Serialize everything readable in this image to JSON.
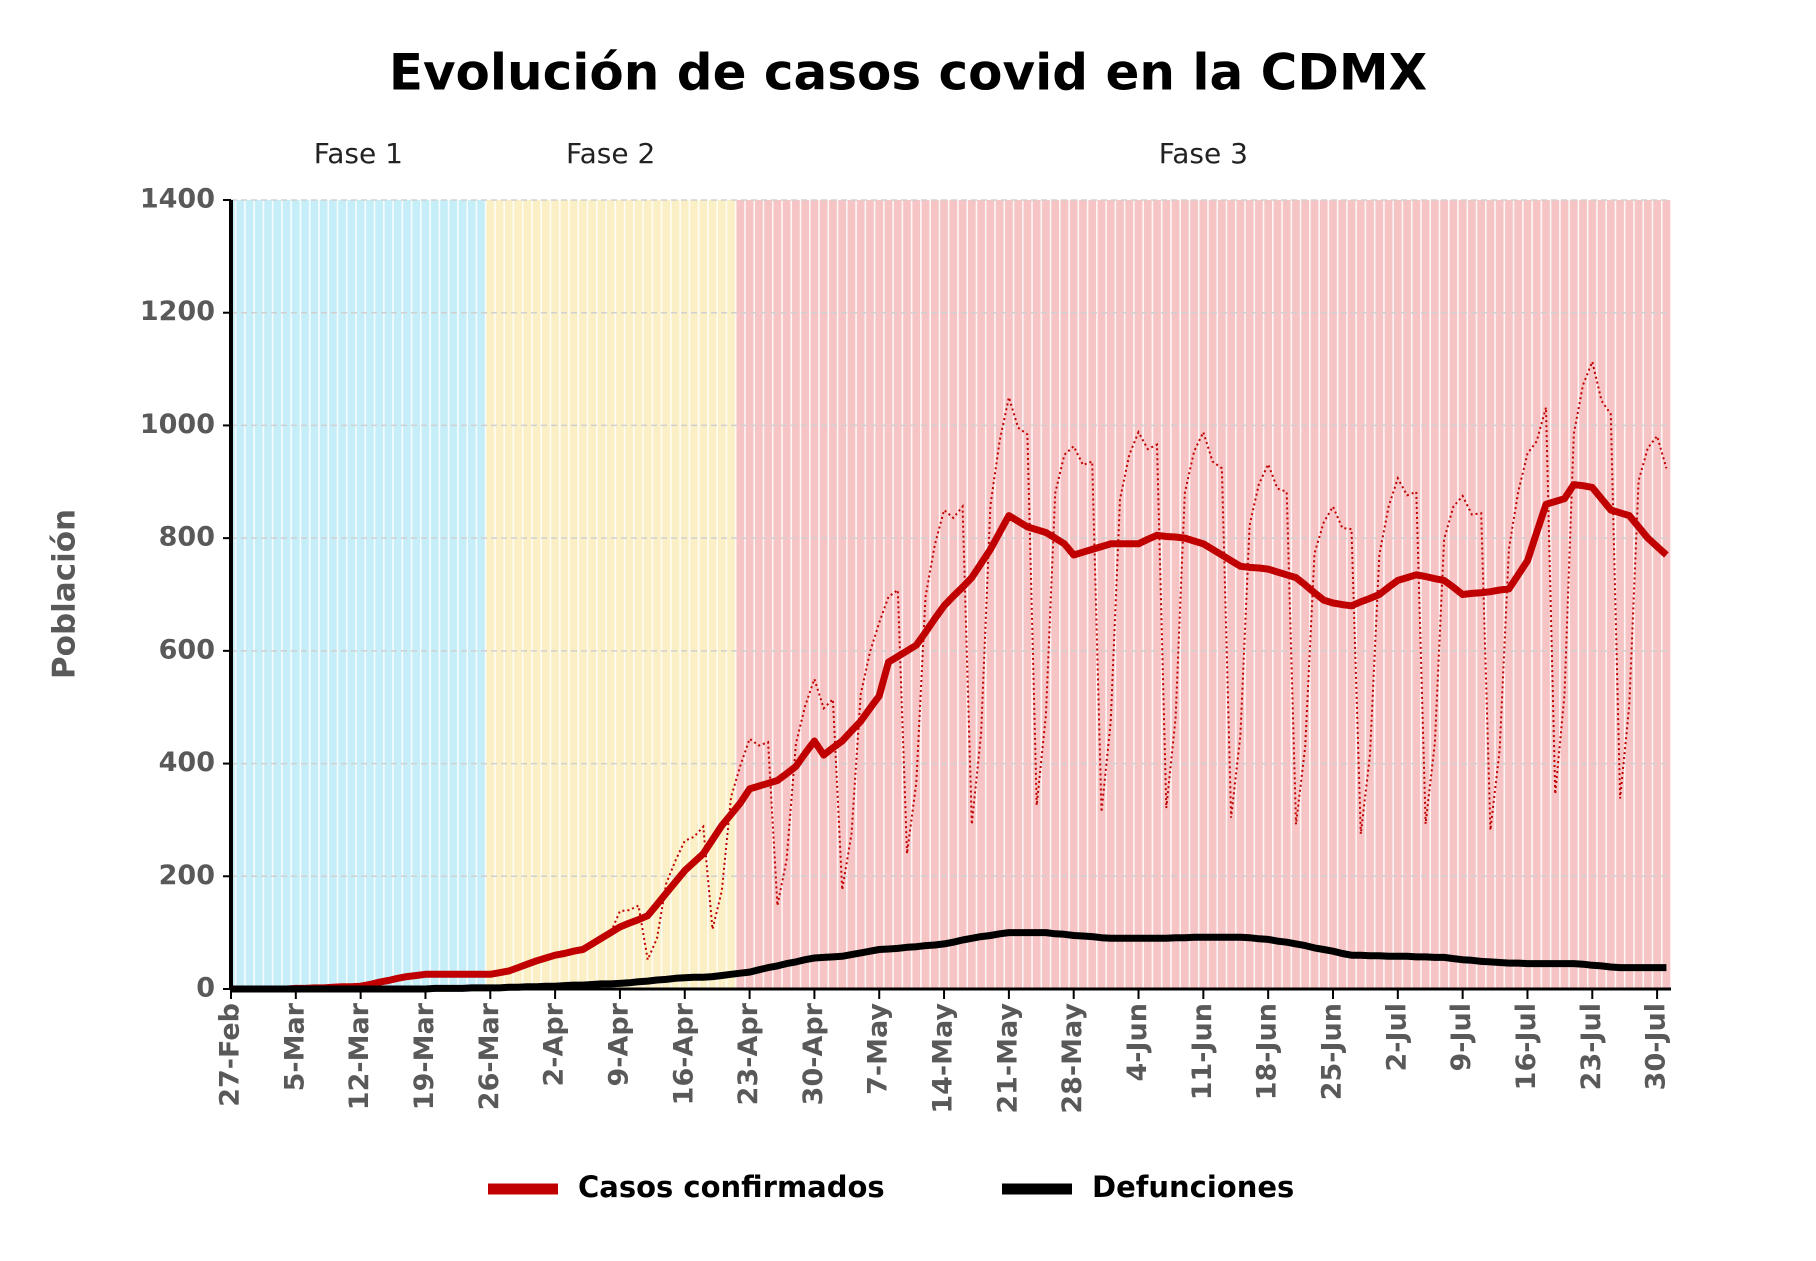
{
  "chart_data": {
    "type": "line",
    "title": "Evolución de casos covid en la CDMX",
    "y_label": "Población",
    "ylim": [
      0,
      1400
    ],
    "yticks": [
      0,
      200,
      400,
      600,
      800,
      1000,
      1200,
      1400
    ],
    "grid": true,
    "legend": "bottom",
    "phases": [
      {
        "label": "Fase 1",
        "start": 0,
        "end": 27.5,
        "color": "#c6eef9"
      },
      {
        "label": "Fase 2",
        "start": 27.5,
        "end": 54.5,
        "color": "#fbefc6"
      },
      {
        "label": "Fase 3",
        "start": 54.5,
        "end": 155.5,
        "color": "#f6c4c4"
      }
    ],
    "categories": [
      "27-Feb",
      null,
      null,
      null,
      null,
      null,
      null,
      "5-Mar",
      null,
      null,
      null,
      null,
      null,
      null,
      "12-Mar",
      null,
      null,
      null,
      null,
      null,
      null,
      "19-Mar",
      null,
      null,
      null,
      null,
      null,
      null,
      "26-Mar",
      null,
      null,
      null,
      null,
      null,
      null,
      "2-Apr",
      null,
      null,
      null,
      null,
      null,
      null,
      "9-Apr",
      null,
      null,
      null,
      null,
      null,
      null,
      "16-Apr",
      null,
      null,
      null,
      null,
      null,
      null,
      "23-Apr",
      null,
      null,
      null,
      null,
      null,
      null,
      "30-Apr",
      null,
      null,
      null,
      null,
      null,
      null,
      "7-May",
      null,
      null,
      null,
      null,
      null,
      null,
      "14-May",
      null,
      null,
      null,
      null,
      null,
      null,
      "21-May",
      null,
      null,
      null,
      null,
      null,
      null,
      "28-May",
      null,
      null,
      null,
      null,
      null,
      null,
      "4-Jun",
      null,
      null,
      null,
      null,
      null,
      null,
      "11-Jun",
      null,
      null,
      null,
      null,
      null,
      null,
      "18-Jun",
      null,
      null,
      null,
      null,
      null,
      null,
      "25-Jun",
      null,
      null,
      null,
      null,
      null,
      null,
      "2-Jul",
      null,
      null,
      null,
      null,
      null,
      null,
      "9-Jul",
      null,
      null,
      null,
      null,
      null,
      null,
      "16-Jul",
      null,
      null,
      null,
      null,
      null,
      null,
      "23-Jul",
      null,
      null,
      null,
      null,
      null,
      null,
      "30-Jul",
      null
    ],
    "series": [
      {
        "name": "Casos confirmados",
        "color": "#c00000",
        "values": [
          0,
          0,
          0,
          0,
          0,
          0,
          0,
          1,
          1,
          2,
          2,
          3,
          4,
          4,
          5,
          8,
          12,
          15,
          19,
          22,
          24,
          26,
          26,
          26,
          26,
          26,
          26,
          26,
          26,
          29,
          32,
          38,
          44,
          50,
          55,
          60,
          63,
          67,
          70,
          80,
          90,
          100,
          110,
          117,
          123,
          130,
          150,
          170,
          190,
          210,
          225,
          240,
          265,
          290,
          310,
          330,
          355,
          360,
          365,
          370,
          382,
          395,
          418,
          440,
          415,
          428,
          440,
          458,
          475,
          498,
          520,
          580,
          590,
          600,
          610,
          633,
          657,
          680,
          697,
          713,
          730,
          755,
          780,
          810,
          840,
          830,
          820,
          815,
          810,
          800,
          790,
          770,
          775,
          780,
          785,
          790,
          790,
          790,
          790,
          798,
          805,
          803,
          802,
          800,
          795,
          790,
          780,
          770,
          760,
          750,
          748,
          747,
          745,
          740,
          735,
          730,
          717,
          703,
          690,
          685,
          682,
          680,
          687,
          693,
          700,
          713,
          725,
          730,
          735,
          732,
          728,
          725,
          713,
          700,
          702,
          703,
          705,
          708,
          710,
          735,
          760,
          810,
          860,
          865,
          870,
          895,
          893,
          890,
          870,
          850,
          845,
          840,
          820,
          800,
          785,
          770
        ],
        "daily_values": [
          0,
          0,
          0,
          0,
          0,
          0,
          0,
          1,
          1,
          2,
          2,
          3,
          4,
          4,
          5,
          8,
          12,
          15,
          19,
          22,
          24,
          26,
          26,
          26,
          26,
          26,
          26,
          26,
          26,
          29,
          32,
          38,
          44,
          50,
          55,
          60,
          63,
          67,
          70,
          80,
          90,
          100,
          138,
          140,
          148,
          52,
          90,
          187,
          228,
          263,
          270,
          288,
          106,
          174,
          341,
          396,
          444,
          432,
          438,
          148,
          229,
          435,
          502,
          550,
          498,
          514,
          176,
          275,
          523,
          598,
          650,
          696,
          708,
          240,
          366,
          696,
          788,
          850,
          836,
          856,
          292,
          453,
          858,
          972,
          1050,
          996,
          984,
          326,
          486,
          880,
          948,
          963,
          930,
          936,
          314,
          474,
          869,
          948,
          988,
          958,
          966,
          321,
          481,
          880,
          954,
          988,
          936,
          924,
          304,
          450,
          823,
          896,
          931,
          888,
          882,
          292,
          430,
          773,
          828,
          856,
          818,
          816,
          275,
          416,
          770,
          856,
          906,
          876,
          882,
          293,
          437,
          798,
          856,
          875,
          842,
          844,
          282,
          425,
          781,
          882,
          950,
          972,
          1032,
          346,
          522,
          985,
          1072,
          1113,
          1044,
          1020,
          338,
          504,
          902,
          960,
          981,
          924
        ]
      },
      {
        "name": "Defunciones",
        "color": "#000000",
        "values": [
          0,
          0,
          0,
          0,
          0,
          0,
          0,
          0,
          0,
          0,
          0,
          0,
          0,
          0,
          0,
          0,
          0,
          0,
          0,
          0,
          0,
          0,
          1,
          1,
          1,
          1,
          2,
          2,
          2,
          2,
          3,
          3,
          4,
          4,
          5,
          5,
          6,
          7,
          7,
          8,
          9,
          9,
          10,
          11,
          13,
          14,
          16,
          17,
          19,
          20,
          21,
          21,
          22,
          24,
          26,
          28,
          30,
          34,
          38,
          41,
          45,
          48,
          52,
          55,
          56,
          57,
          58,
          61,
          64,
          67,
          70,
          71,
          72,
          74,
          75,
          77,
          78,
          80,
          83,
          87,
          90,
          93,
          95,
          98,
          100,
          100,
          100,
          100,
          100,
          98,
          97,
          95,
          94,
          93,
          91,
          90,
          90,
          90,
          90,
          90,
          90,
          90,
          91,
          91,
          92,
          92,
          92,
          92,
          92,
          92,
          91,
          89,
          88,
          85,
          83,
          80,
          77,
          73,
          70,
          67,
          63,
          60,
          60,
          59,
          59,
          58,
          58,
          58,
          57,
          57,
          56,
          56,
          54,
          52,
          51,
          49,
          48,
          47,
          46,
          46,
          45,
          45,
          45,
          45,
          45,
          45,
          44,
          42,
          41,
          39,
          38,
          38,
          38,
          38,
          38,
          38
        ]
      }
    ]
  }
}
